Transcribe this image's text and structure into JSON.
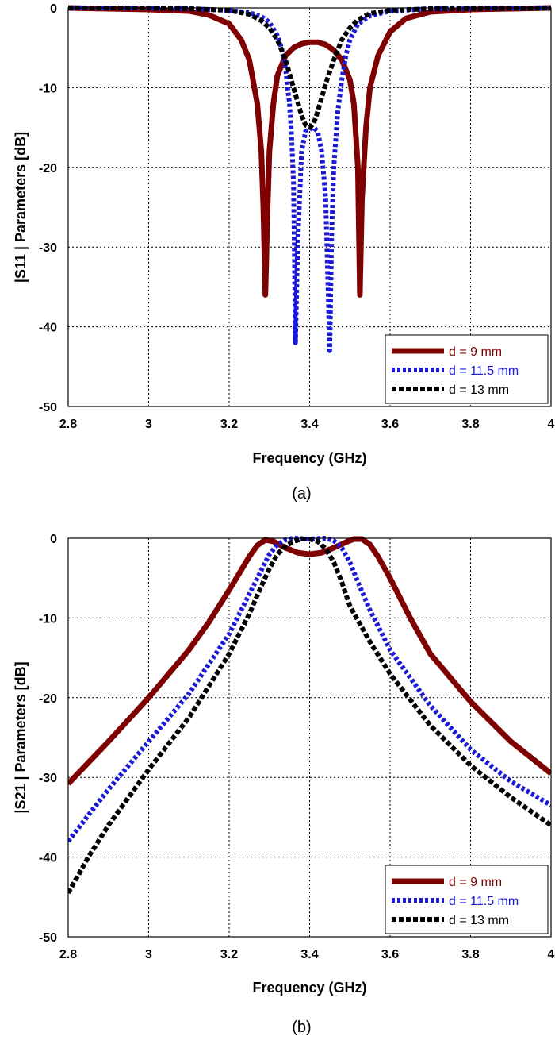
{
  "chart_data": [
    {
      "type": "line",
      "caption": "(a)",
      "xlabel": "Frequency (GHz)",
      "ylabel": "|S11 | Parameters [dB]",
      "xlim": [
        2.8,
        4.0
      ],
      "ylim": [
        -50,
        0
      ],
      "xticks": [
        "2.8",
        "3",
        "3.2",
        "3.4",
        "3.6",
        "3.8",
        "4"
      ],
      "yticks": [
        "0",
        "-10",
        "-20",
        "-30",
        "-40",
        "-50"
      ],
      "grid": true,
      "legend_position": "bottom-right",
      "series": [
        {
          "name": "d = 9 mm",
          "color": "#7f0000",
          "style": "solid",
          "points": [
            [
              2.8,
              0
            ],
            [
              2.9,
              -0.1
            ],
            [
              3.0,
              -0.2
            ],
            [
              3.1,
              -0.4
            ],
            [
              3.15,
              -0.9
            ],
            [
              3.2,
              -2
            ],
            [
              3.23,
              -4
            ],
            [
              3.25,
              -6.5
            ],
            [
              3.27,
              -12
            ],
            [
              3.28,
              -18
            ],
            [
              3.285,
              -25
            ],
            [
              3.29,
              -36
            ],
            [
              3.295,
              -26
            ],
            [
              3.3,
              -18
            ],
            [
              3.31,
              -12
            ],
            [
              3.32,
              -8.5
            ],
            [
              3.34,
              -6
            ],
            [
              3.36,
              -5
            ],
            [
              3.38,
              -4.5
            ],
            [
              3.4,
              -4.3
            ],
            [
              3.42,
              -4.3
            ],
            [
              3.44,
              -4.6
            ],
            [
              3.46,
              -5.3
            ],
            [
              3.48,
              -6.5
            ],
            [
              3.5,
              -9
            ],
            [
              3.51,
              -12
            ],
            [
              3.52,
              -20
            ],
            [
              3.525,
              -36
            ],
            [
              3.53,
              -24
            ],
            [
              3.54,
              -15
            ],
            [
              3.55,
              -10
            ],
            [
              3.57,
              -6
            ],
            [
              3.6,
              -3
            ],
            [
              3.64,
              -1.3
            ],
            [
              3.7,
              -0.5
            ],
            [
              3.8,
              -0.2
            ],
            [
              3.9,
              -0.1
            ],
            [
              4.0,
              0
            ]
          ]
        },
        {
          "name": "d = 11.5 mm",
          "color": "#1a1ad6",
          "style": "dotted",
          "points": [
            [
              2.8,
              0
            ],
            [
              3.0,
              0
            ],
            [
              3.1,
              -0.1
            ],
            [
              3.2,
              -0.3
            ],
            [
              3.25,
              -0.6
            ],
            [
              3.28,
              -1.1
            ],
            [
              3.3,
              -1.8
            ],
            [
              3.32,
              -3.5
            ],
            [
              3.33,
              -5
            ],
            [
              3.34,
              -7.5
            ],
            [
              3.35,
              -12
            ],
            [
              3.355,
              -16
            ],
            [
              3.36,
              -22
            ],
            [
              3.365,
              -42
            ],
            [
              3.37,
              -30
            ],
            [
              3.38,
              -18
            ],
            [
              3.39,
              -15.5
            ],
            [
              3.4,
              -15.2
            ],
            [
              3.41,
              -15
            ],
            [
              3.42,
              -15.5
            ],
            [
              3.43,
              -18
            ],
            [
              3.44,
              -24
            ],
            [
              3.45,
              -43
            ],
            [
              3.455,
              -28
            ],
            [
              3.46,
              -20
            ],
            [
              3.47,
              -13
            ],
            [
              3.48,
              -9
            ],
            [
              3.49,
              -6
            ],
            [
              3.5,
              -4
            ],
            [
              3.52,
              -2
            ],
            [
              3.55,
              -1
            ],
            [
              3.6,
              -0.4
            ],
            [
              3.7,
              -0.1
            ],
            [
              4.0,
              0
            ]
          ]
        },
        {
          "name": "d = 13 mm",
          "color": "#000000",
          "style": "dashed",
          "points": [
            [
              2.8,
              0
            ],
            [
              3.0,
              0
            ],
            [
              3.1,
              -0.1
            ],
            [
              3.2,
              -0.3
            ],
            [
              3.25,
              -0.8
            ],
            [
              3.28,
              -1.6
            ],
            [
              3.3,
              -2.5
            ],
            [
              3.32,
              -4
            ],
            [
              3.34,
              -6.5
            ],
            [
              3.36,
              -10
            ],
            [
              3.38,
              -13.5
            ],
            [
              3.39,
              -14.7
            ],
            [
              3.4,
              -15
            ],
            [
              3.41,
              -14.5
            ],
            [
              3.42,
              -13
            ],
            [
              3.44,
              -9.5
            ],
            [
              3.46,
              -6.5
            ],
            [
              3.48,
              -4
            ],
            [
              3.5,
              -2.5
            ],
            [
              3.52,
              -1.5
            ],
            [
              3.55,
              -0.7
            ],
            [
              3.6,
              -0.3
            ],
            [
              3.7,
              -0.1
            ],
            [
              4.0,
              0
            ]
          ]
        }
      ]
    },
    {
      "type": "line",
      "caption": "(b)",
      "xlabel": "Frequency (GHz)",
      "ylabel": "|S21 | Parameters [dB]",
      "xlim": [
        2.8,
        4.0
      ],
      "ylim": [
        -50,
        0
      ],
      "xticks": [
        "2.8",
        "3",
        "3.2",
        "3.4",
        "3.6",
        "3.8",
        "4"
      ],
      "yticks": [
        "0",
        "-10",
        "-20",
        "-30",
        "-40",
        "-50"
      ],
      "grid": true,
      "legend_position": "bottom-right",
      "series": [
        {
          "name": "d = 9 mm",
          "color": "#7f0000",
          "style": "solid",
          "points": [
            [
              2.8,
              -30.8
            ],
            [
              2.9,
              -25.5
            ],
            [
              3.0,
              -20
            ],
            [
              3.1,
              -14
            ],
            [
              3.15,
              -10.5
            ],
            [
              3.2,
              -6.5
            ],
            [
              3.23,
              -4
            ],
            [
              3.25,
              -2.3
            ],
            [
              3.27,
              -0.9
            ],
            [
              3.29,
              -0.2
            ],
            [
              3.31,
              -0.4
            ],
            [
              3.34,
              -1.2
            ],
            [
              3.37,
              -1.8
            ],
            [
              3.4,
              -2
            ],
            [
              3.43,
              -1.8
            ],
            [
              3.46,
              -1.2
            ],
            [
              3.49,
              -0.5
            ],
            [
              3.51,
              -0.1
            ],
            [
              3.53,
              -0.1
            ],
            [
              3.55,
              -0.8
            ],
            [
              3.57,
              -2.3
            ],
            [
              3.6,
              -5
            ],
            [
              3.65,
              -10
            ],
            [
              3.7,
              -14.5
            ],
            [
              3.8,
              -20.5
            ],
            [
              3.9,
              -25.5
            ],
            [
              4.0,
              -29.5
            ]
          ]
        },
        {
          "name": "d = 11.5 mm",
          "color": "#1a1ad6",
          "style": "dotted",
          "points": [
            [
              2.8,
              -38
            ],
            [
              2.9,
              -31.5
            ],
            [
              3.0,
              -25.5
            ],
            [
              3.1,
              -19.5
            ],
            [
              3.2,
              -12
            ],
            [
              3.25,
              -7
            ],
            [
              3.28,
              -4
            ],
            [
              3.3,
              -2
            ],
            [
              3.32,
              -0.8
            ],
            [
              3.34,
              -0.2
            ],
            [
              3.36,
              0
            ],
            [
              3.4,
              -0.1
            ],
            [
              3.44,
              0
            ],
            [
              3.46,
              -0.3
            ],
            [
              3.48,
              -1.2
            ],
            [
              3.5,
              -3
            ],
            [
              3.52,
              -5.5
            ],
            [
              3.55,
              -9
            ],
            [
              3.6,
              -14
            ],
            [
              3.7,
              -21
            ],
            [
              3.8,
              -26.5
            ],
            [
              3.9,
              -30.5
            ],
            [
              4.0,
              -33.5
            ]
          ]
        },
        {
          "name": "d = 13 mm",
          "color": "#000000",
          "style": "dashed",
          "points": [
            [
              2.8,
              -44.5
            ],
            [
              2.85,
              -40
            ],
            [
              2.9,
              -36
            ],
            [
              3.0,
              -29
            ],
            [
              3.1,
              -22.5
            ],
            [
              3.2,
              -14.5
            ],
            [
              3.25,
              -9.5
            ],
            [
              3.28,
              -6
            ],
            [
              3.3,
              -3.8
            ],
            [
              3.32,
              -2
            ],
            [
              3.34,
              -1
            ],
            [
              3.36,
              -0.4
            ],
            [
              3.38,
              -0.1
            ],
            [
              3.4,
              -0.1
            ],
            [
              3.42,
              -0.4
            ],
            [
              3.44,
              -1.3
            ],
            [
              3.46,
              -3
            ],
            [
              3.48,
              -5.5
            ],
            [
              3.5,
              -8.5
            ],
            [
              3.55,
              -13
            ],
            [
              3.6,
              -17
            ],
            [
              3.7,
              -23.5
            ],
            [
              3.8,
              -28.5
            ],
            [
              3.9,
              -32.5
            ],
            [
              4.0,
              -36
            ]
          ]
        }
      ]
    }
  ]
}
